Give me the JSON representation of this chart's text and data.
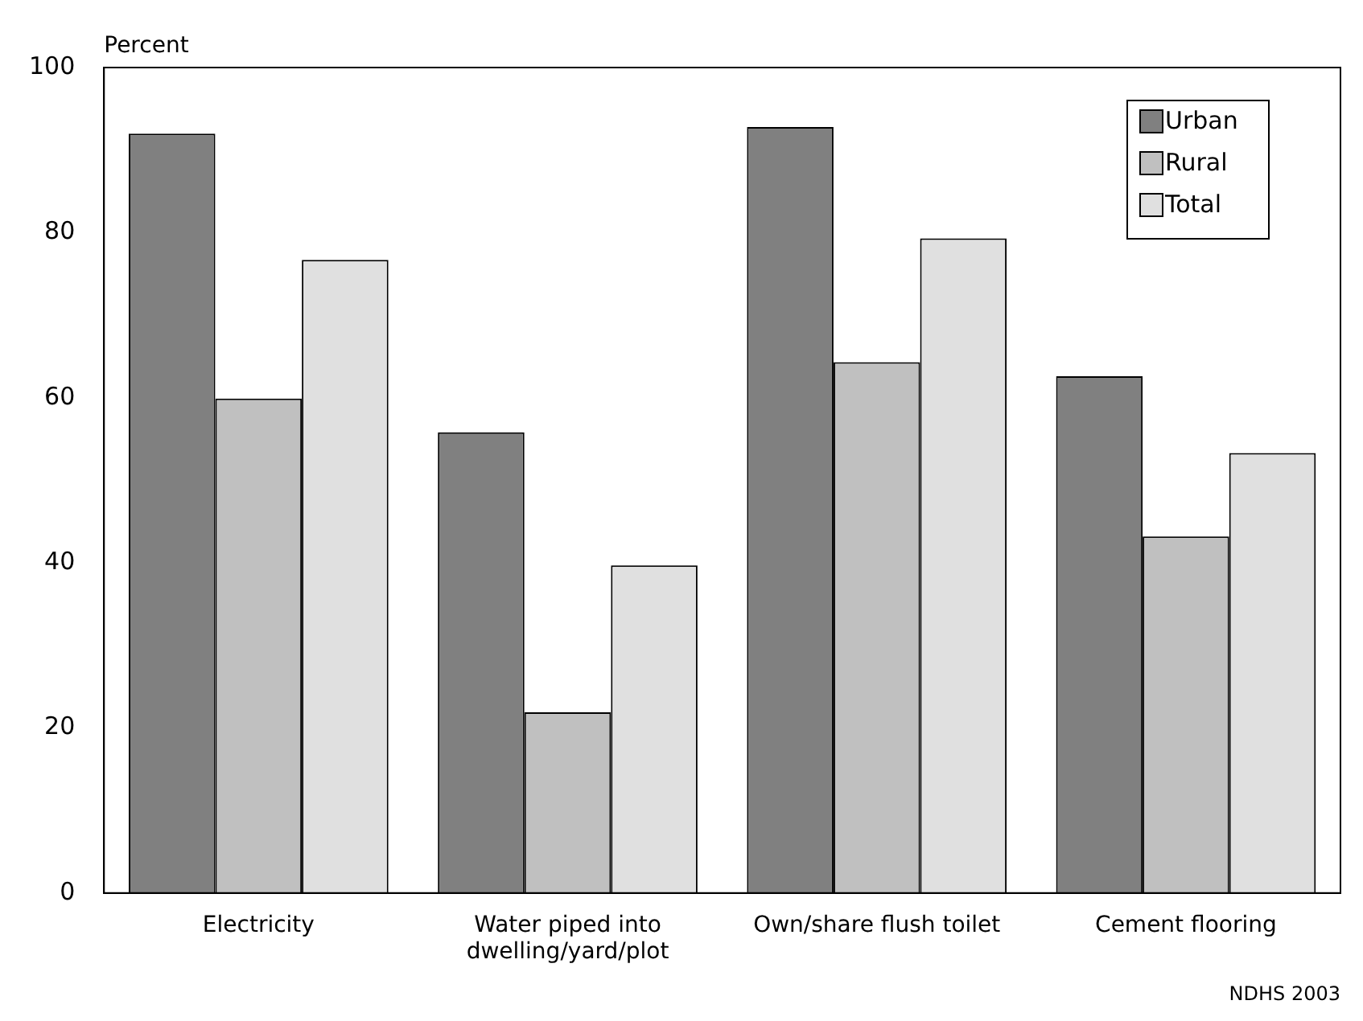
{
  "chart_data": {
    "type": "bar",
    "ylabel": "Percent",
    "categories": [
      "Electricity",
      "Water piped into dwelling/yard/plot",
      "Own/share flush toilet",
      "Cement flooring"
    ],
    "series": [
      {
        "name": "Urban",
        "color": "#808080",
        "values": [
          92.0,
          55.8,
          92.8,
          62.6
        ]
      },
      {
        "name": "Rural",
        "color": "#c0c0c0",
        "values": [
          59.9,
          21.9,
          64.3,
          43.2
        ]
      },
      {
        "name": "Total",
        "color": "#e0e0e0",
        "values": [
          76.7,
          39.7,
          79.3,
          53.3
        ]
      }
    ],
    "ylim": [
      0,
      100
    ],
    "yticks": [
      0,
      20,
      40,
      60,
      80,
      100
    ],
    "grid": false,
    "legend": "top right",
    "annotations": [
      "NDHS 2003"
    ]
  }
}
